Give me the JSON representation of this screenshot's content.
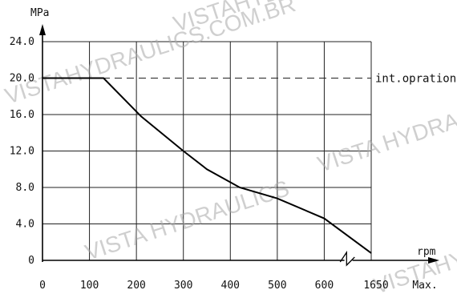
{
  "chart_data": {
    "type": "line",
    "ylabel": "MPa",
    "xlabel": "rpm",
    "y_ticks": [
      "0",
      "4.0",
      "8.0",
      "12.0",
      "16.0",
      "20.0",
      "24.0"
    ],
    "x_ticks": [
      "0",
      "100",
      "200",
      "300",
      "400",
      "500",
      "600",
      "1650",
      "Max."
    ],
    "ylim": [
      0,
      24
    ],
    "xlim": [
      0,
      700
    ],
    "grid": true,
    "axis_break": "between 600 and 1650",
    "series": [
      {
        "x": [
          0,
          130,
          210,
          300,
          350,
          420,
          500,
          600,
          700
        ],
        "y": [
          20.0,
          20.0,
          15.8,
          12.0,
          10.0,
          8.0,
          6.8,
          4.6,
          0.8
        ]
      }
    ],
    "reference_lines": [
      {
        "y": 20.0,
        "style": "dashed",
        "label": "int.opration"
      }
    ],
    "watermarks": [
      "VISTAHYDRAULICS.COM.BR",
      "VISTA HYDRAULICS",
      "VISTAHYDRAULICS.COM.BR",
      "VISTA HYDRAULICS",
      "VISTAHYDRAULICS"
    ]
  }
}
